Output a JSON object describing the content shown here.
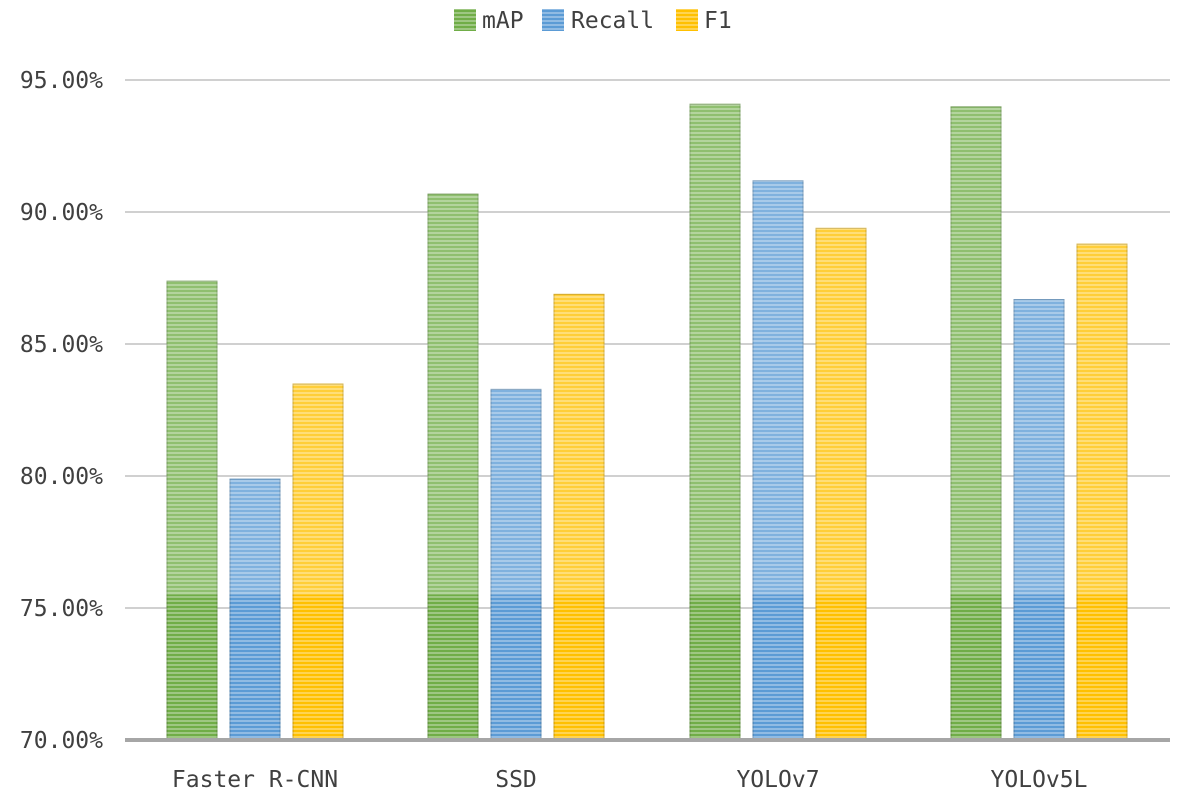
{
  "chart_data": {
    "type": "bar",
    "title": "",
    "xlabel": "",
    "ylabel": "",
    "categories": [
      "Faster R-CNN",
      "SSD",
      "YOLOv7",
      "YOLOv5L"
    ],
    "series": [
      {
        "name": "mAP",
        "color": "#70ad47",
        "values": [
          87.4,
          90.7,
          94.1,
          94.0
        ]
      },
      {
        "name": "Recall",
        "color": "#5b9bd5",
        "values": [
          79.9,
          83.3,
          91.2,
          86.7
        ]
      },
      {
        "name": "F1",
        "color": "#ffc000",
        "values": [
          83.5,
          86.9,
          89.4,
          88.8
        ]
      }
    ],
    "ylim": [
      70,
      95
    ],
    "yticks": [
      70,
      75,
      80,
      85,
      90,
      95
    ],
    "ytick_labels": [
      "70.00%",
      "75.00%",
      "80.00%",
      "85.00%",
      "90.00%",
      "95.00%"
    ],
    "grid": true,
    "legend_position": "top-center"
  }
}
